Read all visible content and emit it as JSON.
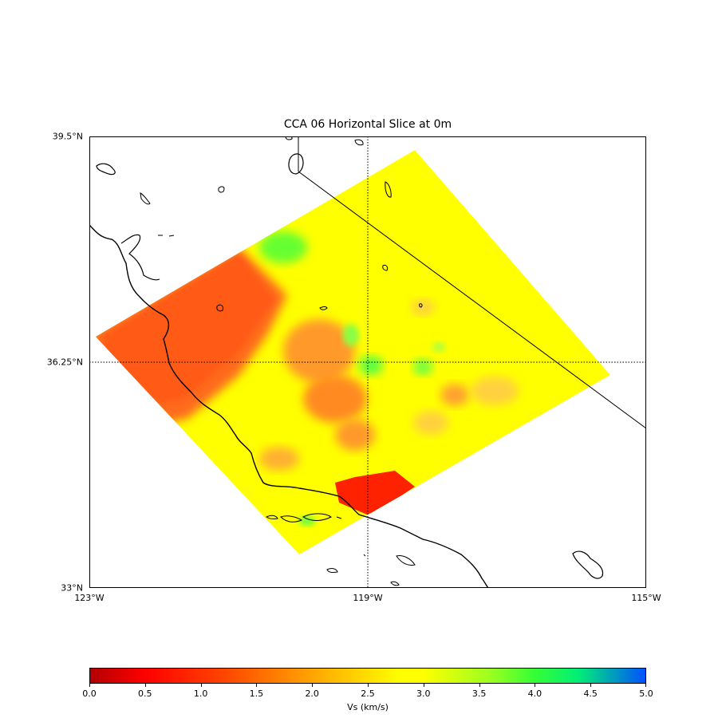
{
  "figure": {
    "title": "CCA 06 Horizontal Slice at 0m"
  },
  "map": {
    "lat_labels": [
      "39.5°N",
      "36.25°N",
      "33°N"
    ],
    "lon_labels": [
      "123°W",
      "119°W",
      "115°W"
    ],
    "lat_range": [
      33,
      39.5
    ],
    "lon_range": [
      -123,
      -115
    ],
    "gridlines": "dotted at 36.25°N and 119°W",
    "coastline_color": "#000000",
    "region_colors": {
      "dominant": "#ffff00",
      "low_velocity_west": "#ff6a1a",
      "low_velocity_basin": "#ff2200",
      "high_velocity": "#66ff33"
    }
  },
  "colorbar": {
    "label": "Vs (km/s)",
    "min": 0.0,
    "max": 5.0,
    "ticks": [
      "0.0",
      "0.5",
      "1.0",
      "1.5",
      "2.0",
      "2.5",
      "3.0",
      "3.5",
      "4.0",
      "4.5",
      "5.0"
    ],
    "colormap": "red-yellow-green-blue"
  }
}
